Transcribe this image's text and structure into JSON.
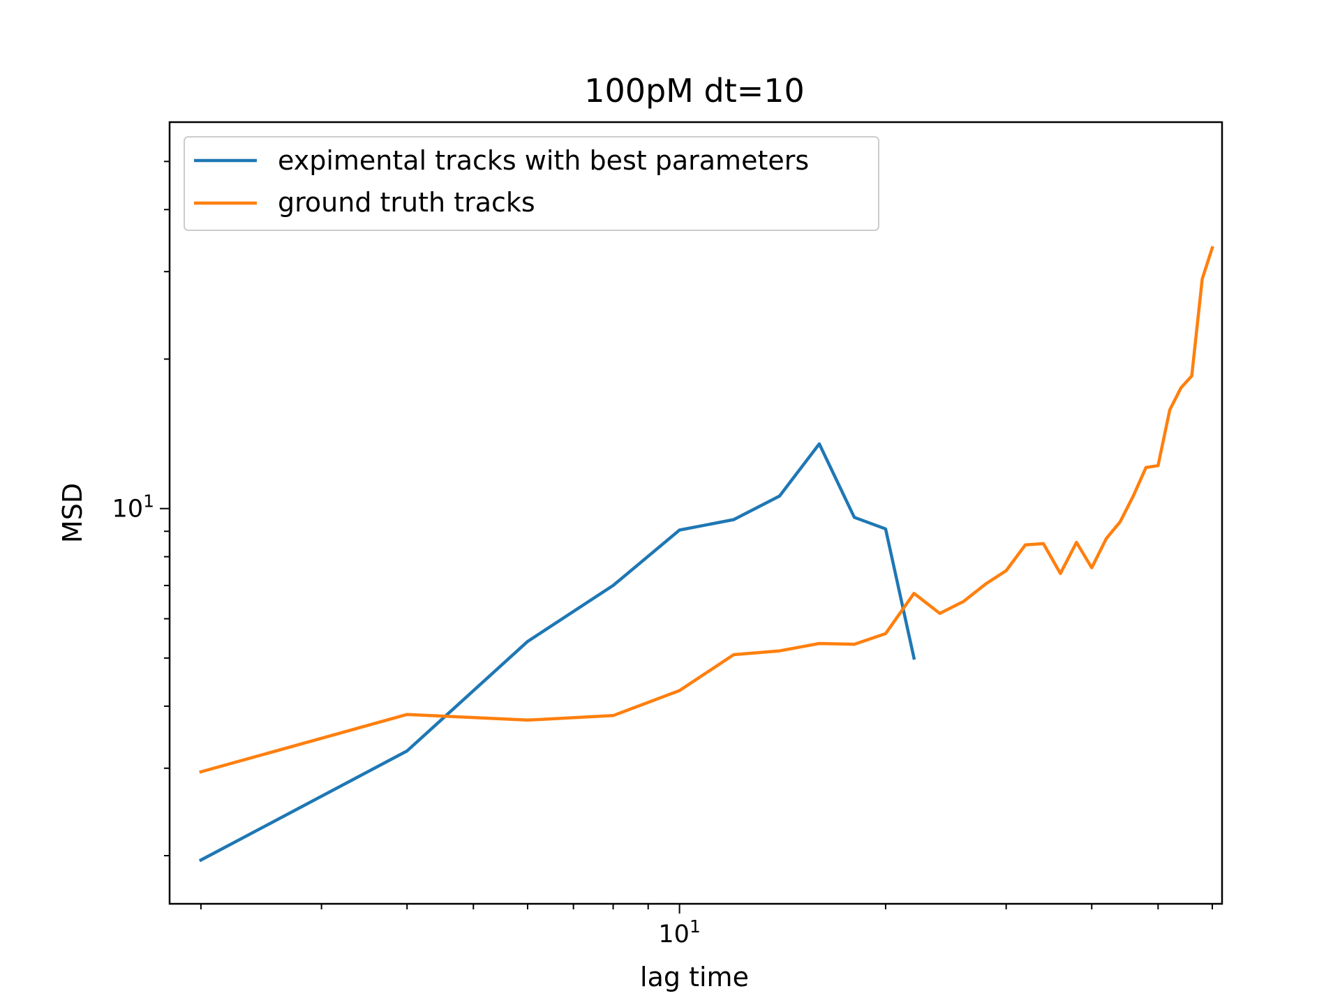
{
  "chart_data": {
    "type": "line",
    "title": "100pM dt=10",
    "xlabel": "lag time",
    "ylabel": "MSD",
    "xscale": "log",
    "yscale": "log",
    "xlim": [
      1.8,
      62
    ],
    "ylim": [
      1.6,
      60
    ],
    "x_major_ticks": [
      {
        "value": 10,
        "base": "10",
        "exp": "1"
      }
    ],
    "x_minor_ticks": [
      2,
      3,
      4,
      5,
      6,
      7,
      8,
      9,
      20,
      30,
      40,
      50,
      60
    ],
    "y_major_ticks": [
      {
        "value": 10,
        "base": "10",
        "exp": "1"
      }
    ],
    "y_minor_ticks": [
      2,
      3,
      4,
      5,
      6,
      7,
      8,
      9,
      20,
      30,
      40,
      50
    ],
    "grid": false,
    "legend_position": "upper-left",
    "series": [
      {
        "name": "expimental tracks with best parameters",
        "color": "#1f77b4",
        "x": [
          2,
          4,
          6,
          8,
          10,
          12,
          14,
          16,
          18,
          20,
          22
        ],
        "y": [
          1.96,
          3.25,
          5.4,
          7.0,
          9.05,
          9.5,
          10.6,
          13.5,
          9.6,
          9.1,
          5.0
        ]
      },
      {
        "name": "ground truth tracks",
        "color": "#ff7f0e",
        "x": [
          2,
          4,
          6,
          8,
          10,
          12,
          14,
          16,
          18,
          20,
          22,
          24,
          26,
          28,
          30,
          32,
          34,
          36,
          38,
          40,
          42,
          44,
          46,
          48,
          50,
          52,
          54,
          56,
          58,
          60
        ],
        "y": [
          2.95,
          3.85,
          3.75,
          3.83,
          4.3,
          5.08,
          5.17,
          5.35,
          5.33,
          5.6,
          6.75,
          6.15,
          6.5,
          7.05,
          7.5,
          8.45,
          8.5,
          7.4,
          8.55,
          7.6,
          8.7,
          9.4,
          10.6,
          12.1,
          12.2,
          15.8,
          17.5,
          18.5,
          29.0,
          33.5
        ]
      }
    ]
  }
}
